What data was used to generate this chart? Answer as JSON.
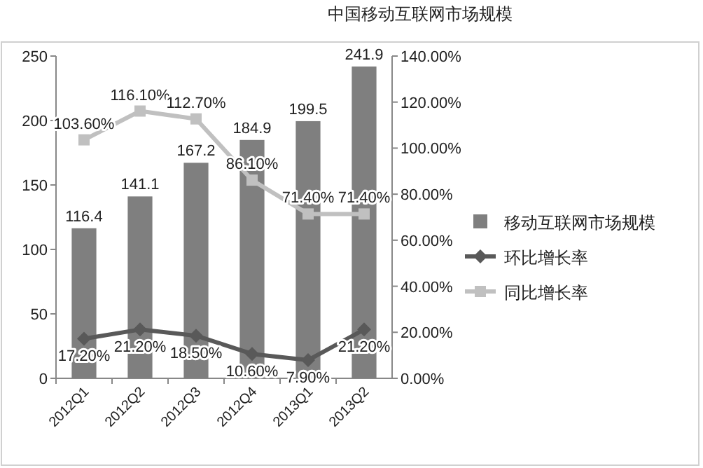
{
  "chart_data": {
    "type": "bar",
    "title": "中国移动互联网市场规模",
    "categories": [
      "2012Q1",
      "2012Q2",
      "2012Q3",
      "2012Q4",
      "2013Q1",
      "2013Q2"
    ],
    "series": [
      {
        "name": "移动互联网市场规模",
        "color": "#7f7f7f",
        "values": [
          116.4,
          141.1,
          167.2,
          184.9,
          199.5,
          241.9
        ],
        "value_labels": [
          "116.4",
          "141.1",
          "167.2",
          "184.9",
          "199.5",
          "241.9"
        ]
      },
      {
        "name": "环比增长率",
        "type": "line",
        "axis": "y2",
        "marker": "diamond",
        "color": "#595959",
        "values": [
          17.2,
          21.2,
          18.5,
          10.6,
          7.9,
          21.2
        ],
        "value_labels": [
          "17.20%",
          "21.20%",
          "18.50%",
          "10.60%",
          "7.90%",
          "21.20%"
        ]
      },
      {
        "name": "同比增长率",
        "type": "line",
        "axis": "y2",
        "marker": "square",
        "color": "#c0c0c0",
        "values": [
          103.6,
          116.1,
          112.7,
          86.1,
          71.4,
          71.4
        ],
        "value_labels": [
          "103.60%",
          "116.10%",
          "112.70%",
          "86.10%",
          "71.40%",
          "71.40%"
        ]
      }
    ],
    "ylim": [
      0,
      250
    ],
    "yticks": [
      0,
      50,
      100,
      150,
      200,
      250
    ],
    "y2lim": [
      0,
      140
    ],
    "y2ticks": [
      {
        "value": 0,
        "label": "0.00%"
      },
      {
        "value": 20,
        "label": "20.00%"
      },
      {
        "value": 40,
        "label": "40.00%"
      },
      {
        "value": 60,
        "label": "60.00%"
      },
      {
        "value": 80,
        "label": "80.00%"
      },
      {
        "value": 100,
        "label": "100.00%"
      },
      {
        "value": 120,
        "label": "120.00%"
      },
      {
        "value": 140,
        "label": "140.00%"
      }
    ],
    "legend": "right"
  }
}
